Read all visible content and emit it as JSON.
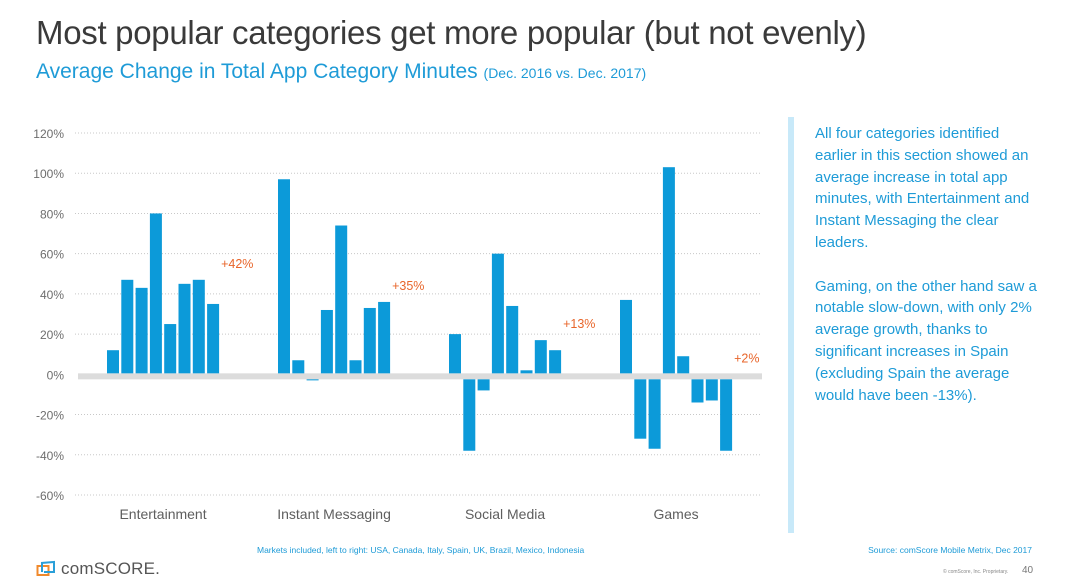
{
  "header": {
    "title": "Most popular categories get more popular (but not evenly)",
    "subtitle": "Average Change in Total App Category Minutes",
    "subtitle_period": "(Dec. 2016 vs. Dec. 2017)"
  },
  "sidebar": {
    "paragraphs": [
      "All four categories identified earlier in this section showed an average increase in total app minutes, with Entertainment and Instant Messaging the clear leaders.",
      "Gaming, on the other hand saw a notable slow-down, with only 2% average growth, thanks to significant increases in Spain (excluding Spain the average would have been -13%)."
    ]
  },
  "footer": {
    "markets_note": "Markets included, left to right: USA, Canada, Italy, Spain, UK, Brazil, Mexico, Indonesia",
    "source": "Source: comScore Mobile Metrix, Dec 2017",
    "copyright": "© comScore, Inc. Proprietary.",
    "page_number": "40",
    "logo_text": "comSCORE."
  },
  "colors": {
    "bar": "#0c9ad9",
    "annotation": "#e8652a",
    "zero_line": "#dcdcdc",
    "grid": "#c8c8c8",
    "accent": "#1e9bd7"
  },
  "chart_data": {
    "type": "bar",
    "title": "Average Change in Total App Category Minutes (Dec. 2016 vs. Dec. 2017)",
    "xlabel": "",
    "ylabel": "",
    "ylim": [
      -60,
      120
    ],
    "yticks": [
      120,
      100,
      80,
      60,
      40,
      20,
      0,
      -20,
      -40,
      -60
    ],
    "ytick_labels": [
      "120%",
      "100%",
      "80%",
      "60%",
      "40%",
      "20%",
      "0%",
      "-20%",
      "-40%",
      "-60%"
    ],
    "grid": true,
    "markets": [
      "USA",
      "Canada",
      "Italy",
      "Spain",
      "UK",
      "Brazil",
      "Mexico",
      "Indonesia"
    ],
    "categories": [
      "Entertainment",
      "Instant Messaging",
      "Social Media",
      "Games"
    ],
    "groups": [
      {
        "name": "Entertainment",
        "values": [
          12,
          47,
          43,
          80,
          25,
          45,
          47,
          35
        ],
        "average_label": "+42%"
      },
      {
        "name": "Instant Messaging",
        "values": [
          97,
          7,
          -3,
          32,
          74,
          7,
          33,
          36
        ],
        "average_label": "+35%"
      },
      {
        "name": "Social Media",
        "values": [
          20,
          -38,
          -8,
          60,
          34,
          2,
          17,
          12
        ],
        "average_label": "+13%"
      },
      {
        "name": "Games",
        "values": [
          37,
          -32,
          -37,
          103,
          9,
          -14,
          -13,
          -38
        ],
        "average_label": "+2%"
      }
    ]
  }
}
